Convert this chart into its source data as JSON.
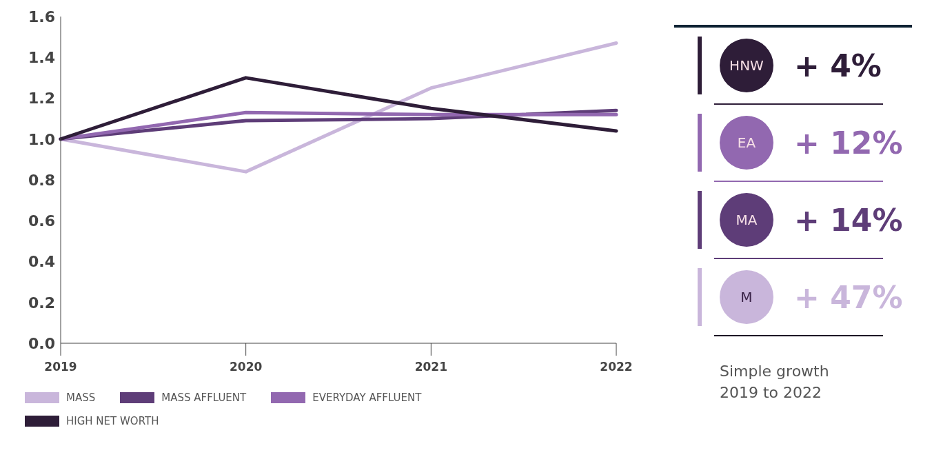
{
  "chart_data": {
    "type": "line",
    "categories": [
      "2019",
      "2020",
      "2021",
      "2022"
    ],
    "series": [
      {
        "name": "MASS",
        "color": "#c9b6db",
        "values": [
          1.0,
          0.84,
          1.25,
          1.47
        ]
      },
      {
        "name": "MASS AFFLUENT",
        "color": "#5e3d78",
        "values": [
          1.0,
          1.09,
          1.1,
          1.14
        ]
      },
      {
        "name": "EVERYDAY AFFLUENT",
        "color": "#9268b0",
        "values": [
          1.0,
          1.13,
          1.12,
          1.12
        ]
      },
      {
        "name": "HIGH NET WORTH",
        "color": "#2e1d38",
        "values": [
          1.0,
          1.3,
          1.15,
          1.04
        ]
      }
    ],
    "ylim": [
      0,
      1.6
    ],
    "yticks": [
      {
        "value": 0,
        "label": "0.0"
      },
      {
        "value": 0.2,
        "label": "0.2"
      },
      {
        "value": 0.4,
        "label": "0.4"
      },
      {
        "value": 0.6,
        "label": "0.6"
      },
      {
        "value": 0.8,
        "label": "0.8"
      },
      {
        "value": 1.0,
        "label": "1.0"
      },
      {
        "value": 1.2,
        "label": "1.2"
      },
      {
        "value": 1.4,
        "label": "1.4"
      },
      {
        "value": 1.6,
        "label": "1.6"
      }
    ],
    "grid": false,
    "legend": "bottom",
    "marker": "none",
    "line_style": "solid",
    "annotations": [
      "HNW",
      "+ 4%",
      "EA",
      "+ 12%",
      "MA",
      "+ 14%",
      "M",
      "+ 47%",
      "Simple growth 2019 to 2022"
    ]
  }
}
